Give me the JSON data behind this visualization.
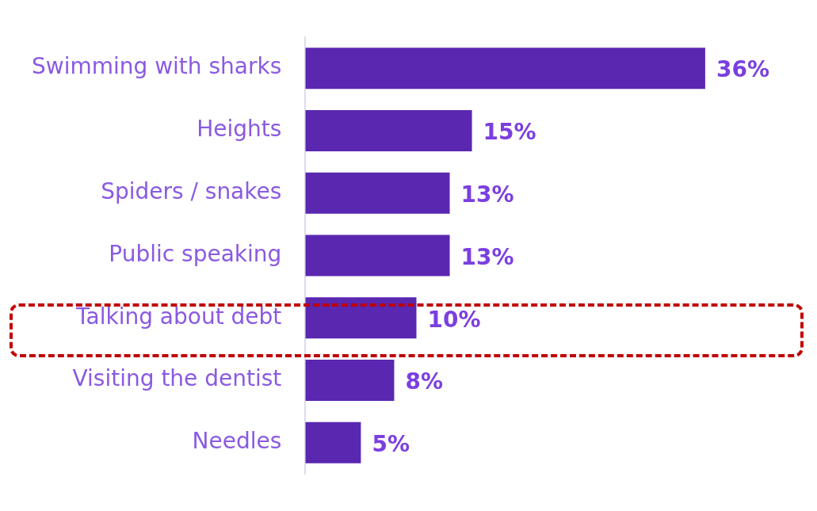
{
  "chart_data": {
    "type": "bar",
    "orientation": "horizontal",
    "categories": [
      "Swimming with sharks",
      "Heights",
      "Spiders / snakes",
      "Public speaking",
      "Talking about debt",
      "Visiting the dentist",
      "Needles"
    ],
    "values": [
      36,
      15,
      13,
      13,
      10,
      8,
      5
    ],
    "value_labels": [
      "36%",
      "15%",
      "13%",
      "13%",
      "10%",
      "8%",
      "5%"
    ],
    "color": "#5a27b0",
    "legend": false
  }
}
